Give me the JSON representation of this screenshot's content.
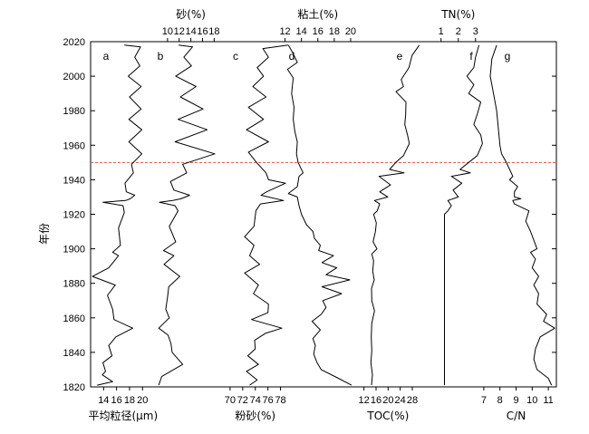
{
  "chart_data": {
    "type": "line",
    "orientation": "depth-profile",
    "y_axis": {
      "label": "年份",
      "ticks": [
        1820,
        1840,
        1860,
        1880,
        1900,
        1920,
        1940,
        1960,
        1980,
        2000,
        2020
      ],
      "range": [
        1820,
        2020
      ]
    },
    "reference_line": {
      "year": 1950,
      "style": "dashed",
      "color": "#e0503c"
    },
    "panels": [
      {
        "id": "a",
        "label": "a",
        "axis_position": "bottom",
        "axis_title": "平均粒径(μm)",
        "ticks": [
          14,
          16,
          18,
          20
        ],
        "range": [
          12,
          21.5
        ],
        "points": [
          [
            17.2,
            2018
          ],
          [
            19.7,
            2017
          ],
          [
            18.8,
            2011
          ],
          [
            19.6,
            2006
          ],
          [
            17.8,
            2000
          ],
          [
            19.8,
            1994
          ],
          [
            18.0,
            1988
          ],
          [
            19.8,
            1981
          ],
          [
            17.9,
            1975
          ],
          [
            19.9,
            1969
          ],
          [
            17.9,
            1962
          ],
          [
            19.9,
            1955
          ],
          [
            18.3,
            1949
          ],
          [
            18.6,
            1944
          ],
          [
            17.3,
            1938
          ],
          [
            17.5,
            1933
          ],
          [
            18.8,
            1931
          ],
          [
            18.1,
            1929
          ],
          [
            17.4,
            1928
          ],
          [
            13.9,
            1927
          ],
          [
            17.0,
            1925
          ],
          [
            17.2,
            1921
          ],
          [
            16.3,
            1912
          ],
          [
            16.6,
            1902
          ],
          [
            15.4,
            1898
          ],
          [
            16.3,
            1896
          ],
          [
            14.8,
            1889
          ],
          [
            12.3,
            1884
          ],
          [
            15.8,
            1879
          ],
          [
            14.6,
            1873
          ],
          [
            15.4,
            1865
          ],
          [
            15.6,
            1859
          ],
          [
            18.5,
            1854
          ],
          [
            15.9,
            1849
          ],
          [
            14.8,
            1844
          ],
          [
            15.3,
            1838
          ],
          [
            13.9,
            1834
          ],
          [
            14.3,
            1829
          ],
          [
            13.8,
            1827
          ],
          [
            15.4,
            1823
          ],
          [
            13.0,
            1821
          ]
        ]
      },
      {
        "id": "b",
        "label": "b",
        "axis_position": "top",
        "axis_title": "砂(%)",
        "ticks": [
          10,
          12,
          14,
          16,
          18
        ],
        "range": [
          8,
          19.5
        ],
        "points": [
          [
            11.9,
            2018
          ],
          [
            14.3,
            2017
          ],
          [
            12.8,
            2011
          ],
          [
            14.1,
            2006
          ],
          [
            11.4,
            2000
          ],
          [
            14.9,
            1994
          ],
          [
            12.2,
            1988
          ],
          [
            16.1,
            1981
          ],
          [
            11.8,
            1975
          ],
          [
            16.8,
            1969
          ],
          [
            11.3,
            1962
          ],
          [
            18.1,
            1955
          ],
          [
            12.6,
            1949
          ],
          [
            13.3,
            1944
          ],
          [
            10.5,
            1939
          ],
          [
            11.1,
            1934
          ],
          [
            13.8,
            1931
          ],
          [
            12.3,
            1929
          ],
          [
            10.9,
            1928
          ],
          [
            8.6,
            1927
          ],
          [
            11.3,
            1925
          ],
          [
            11.8,
            1922
          ],
          [
            10.3,
            1913
          ],
          [
            11.4,
            1904
          ],
          [
            9.3,
            1899
          ],
          [
            11.1,
            1896
          ],
          [
            9.4,
            1891
          ],
          [
            12.1,
            1884
          ],
          [
            10.2,
            1878
          ],
          [
            10.0,
            1872
          ],
          [
            9.7,
            1865
          ],
          [
            10.3,
            1860
          ],
          [
            8.5,
            1854
          ],
          [
            10.1,
            1850
          ],
          [
            10.6,
            1845
          ],
          [
            10.8,
            1840
          ],
          [
            12.6,
            1833
          ],
          [
            9.0,
            1826
          ],
          [
            8.5,
            1821
          ]
        ]
      },
      {
        "id": "c",
        "label": "c",
        "axis_position": "bottom",
        "axis_title": "粉砂(%)",
        "ticks": [
          70,
          72,
          74,
          76,
          78
        ],
        "range": [
          68,
          79.5
        ],
        "points": [
          [
            79.2,
            2018
          ],
          [
            75.2,
            2016
          ],
          [
            76.1,
            2011
          ],
          [
            74.3,
            2005
          ],
          [
            75.3,
            2000
          ],
          [
            73.6,
            1994
          ],
          [
            75.7,
            1988
          ],
          [
            72.9,
            1982
          ],
          [
            75.3,
            1975
          ],
          [
            72.6,
            1969
          ],
          [
            76.1,
            1962
          ],
          [
            72.9,
            1956
          ],
          [
            74.2,
            1950
          ],
          [
            75.7,
            1944
          ],
          [
            76.1,
            1940
          ],
          [
            78.8,
            1938
          ],
          [
            75.8,
            1933
          ],
          [
            74.9,
            1931
          ],
          [
            78.5,
            1928
          ],
          [
            74.8,
            1926
          ],
          [
            74.1,
            1922
          ],
          [
            73.8,
            1913
          ],
          [
            72.3,
            1907
          ],
          [
            73.8,
            1902
          ],
          [
            73.1,
            1896
          ],
          [
            74.7,
            1891
          ],
          [
            72.3,
            1886
          ],
          [
            74.5,
            1879
          ],
          [
            73.7,
            1874
          ],
          [
            76.1,
            1868
          ],
          [
            76.0,
            1863
          ],
          [
            73.4,
            1859
          ],
          [
            78.2,
            1854
          ],
          [
            75.6,
            1851
          ],
          [
            73.9,
            1847
          ],
          [
            74.0,
            1842
          ],
          [
            72.8,
            1838
          ],
          [
            74.5,
            1833
          ],
          [
            72.6,
            1829
          ],
          [
            74.3,
            1824
          ],
          [
            73.1,
            1821
          ]
        ]
      },
      {
        "id": "d",
        "label": "d",
        "axis_position": "top",
        "axis_title": "粘土(%)",
        "ticks": [
          12,
          14,
          16,
          18,
          20
        ],
        "range": [
          10.5,
          21
        ],
        "points": [
          [
            12.4,
            2018
          ],
          [
            13.0,
            2013
          ],
          [
            13.5,
            2008
          ],
          [
            12.3,
            2004
          ],
          [
            13.0,
            1999
          ],
          [
            12.8,
            1990
          ],
          [
            13.1,
            1982
          ],
          [
            13.0,
            1975
          ],
          [
            13.2,
            1968
          ],
          [
            13.5,
            1962
          ],
          [
            13.4,
            1955
          ],
          [
            13.6,
            1950
          ],
          [
            14.2,
            1944
          ],
          [
            13.7,
            1942
          ],
          [
            13.5,
            1936
          ],
          [
            12.4,
            1932
          ],
          [
            13.5,
            1930
          ],
          [
            13.7,
            1925
          ],
          [
            14.0,
            1920
          ],
          [
            14.6,
            1914
          ],
          [
            15.4,
            1910
          ],
          [
            15.6,
            1906
          ],
          [
            16.3,
            1902
          ],
          [
            16.1,
            1899
          ],
          [
            17.9,
            1896
          ],
          [
            16.5,
            1892
          ],
          [
            18.3,
            1889
          ],
          [
            17.0,
            1885
          ],
          [
            19.9,
            1882
          ],
          [
            16.5,
            1878
          ],
          [
            18.9,
            1874
          ],
          [
            16.6,
            1870
          ],
          [
            17.0,
            1866
          ],
          [
            16.4,
            1862
          ],
          [
            15.3,
            1858
          ],
          [
            16.3,
            1853
          ],
          [
            15.4,
            1848
          ],
          [
            15.7,
            1844
          ],
          [
            15.5,
            1839
          ],
          [
            15.9,
            1834
          ],
          [
            16.4,
            1830
          ],
          [
            18.5,
            1825
          ],
          [
            20.1,
            1821
          ]
        ]
      },
      {
        "id": "e",
        "label": "e",
        "axis_position": "bottom",
        "axis_title": "TOC(%)",
        "ticks": [
          12,
          16,
          20,
          24,
          28
        ],
        "range": [
          10,
          31
        ],
        "points": [
          [
            30.3,
            2018
          ],
          [
            27.9,
            2012
          ],
          [
            26.9,
            2005
          ],
          [
            24.3,
            1998
          ],
          [
            25.1,
            1994
          ],
          [
            22.6,
            1991
          ],
          [
            25.9,
            1985
          ],
          [
            25.8,
            1978
          ],
          [
            25.5,
            1972
          ],
          [
            26.4,
            1966
          ],
          [
            27.0,
            1961
          ],
          [
            25.1,
            1954
          ],
          [
            22.5,
            1950
          ],
          [
            20.5,
            1946
          ],
          [
            25.3,
            1944
          ],
          [
            17.0,
            1942
          ],
          [
            20.8,
            1937
          ],
          [
            17.2,
            1933
          ],
          [
            19.9,
            1930
          ],
          [
            15.5,
            1928
          ],
          [
            17.2,
            1926
          ],
          [
            16.4,
            1922
          ],
          [
            15.2,
            1920
          ],
          [
            16.1,
            1915
          ],
          [
            15.8,
            1910
          ],
          [
            15.0,
            1904
          ],
          [
            16.3,
            1900
          ],
          [
            14.6,
            1897
          ],
          [
            15.2,
            1893
          ],
          [
            14.9,
            1887
          ],
          [
            15.4,
            1882
          ],
          [
            14.5,
            1877
          ],
          [
            14.6,
            1870
          ],
          [
            15.5,
            1864
          ],
          [
            14.6,
            1857
          ],
          [
            14.4,
            1849
          ],
          [
            14.6,
            1841
          ],
          [
            14.3,
            1834
          ],
          [
            14.8,
            1827
          ],
          [
            14.5,
            1821
          ]
        ]
      },
      {
        "id": "f",
        "label": "f",
        "axis_position": "top",
        "axis_title": "TN(%)",
        "ticks": [
          1,
          2,
          3
        ],
        "range": [
          -0.3,
          3.8
        ],
        "points": [
          [
            3.2,
            2018
          ],
          [
            3.0,
            2011
          ],
          [
            2.9,
            2005
          ],
          [
            2.5,
            2000
          ],
          [
            2.9,
            1995
          ],
          [
            2.6,
            1990
          ],
          [
            3.3,
            1985
          ],
          [
            3.1,
            1978
          ],
          [
            2.9,
            1972
          ],
          [
            3.3,
            1966
          ],
          [
            3.4,
            1961
          ],
          [
            3.1,
            1954
          ],
          [
            2.6,
            1950
          ],
          [
            2.1,
            1946
          ],
          [
            2.7,
            1944
          ],
          [
            1.6,
            1942
          ],
          [
            2.2,
            1938
          ],
          [
            1.7,
            1934
          ],
          [
            2.0,
            1930
          ],
          [
            1.4,
            1928
          ],
          [
            1.6,
            1925
          ],
          [
            1.4,
            1922
          ],
          [
            1.2,
            1920
          ],
          [
            1.2,
            1910
          ],
          [
            1.2,
            1900
          ],
          [
            1.2,
            1890
          ],
          [
            1.2,
            1880
          ],
          [
            1.2,
            1870
          ],
          [
            1.2,
            1860
          ],
          [
            1.2,
            1850
          ],
          [
            1.2,
            1840
          ],
          [
            1.2,
            1830
          ],
          [
            1.2,
            1821
          ]
        ]
      },
      {
        "id": "g",
        "label": "g",
        "axis_position": "bottom",
        "axis_title": "C/N",
        "ticks": [
          7,
          8,
          9,
          10,
          11
        ],
        "range": [
          6.5,
          11.5
        ],
        "points": [
          [
            7.8,
            2018
          ],
          [
            7.5,
            2010
          ],
          [
            7.4,
            2000
          ],
          [
            7.6,
            1990
          ],
          [
            7.8,
            1980
          ],
          [
            7.9,
            1970
          ],
          [
            8.0,
            1960
          ],
          [
            8.1,
            1955
          ],
          [
            8.4,
            1950
          ],
          [
            8.6,
            1946
          ],
          [
            8.8,
            1942
          ],
          [
            8.6,
            1940
          ],
          [
            9.1,
            1936
          ],
          [
            8.9,
            1933
          ],
          [
            8.9,
            1930
          ],
          [
            9.3,
            1929
          ],
          [
            8.8,
            1928
          ],
          [
            8.9,
            1926
          ],
          [
            9.8,
            1922
          ],
          [
            9.6,
            1916
          ],
          [
            9.9,
            1910
          ],
          [
            10.1,
            1905
          ],
          [
            10.3,
            1900
          ],
          [
            9.9,
            1898
          ],
          [
            10.2,
            1894
          ],
          [
            10.0,
            1889
          ],
          [
            10.4,
            1884
          ],
          [
            10.1,
            1879
          ],
          [
            10.4,
            1874
          ],
          [
            10.3,
            1868
          ],
          [
            10.9,
            1862
          ],
          [
            10.7,
            1858
          ],
          [
            11.4,
            1854
          ],
          [
            10.5,
            1849
          ],
          [
            10.2,
            1842
          ],
          [
            10.1,
            1836
          ],
          [
            10.3,
            1830
          ],
          [
            11.0,
            1825
          ],
          [
            11.2,
            1821
          ]
        ]
      }
    ]
  }
}
